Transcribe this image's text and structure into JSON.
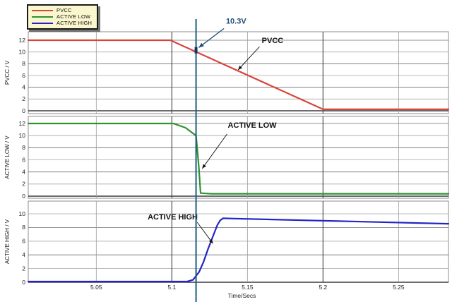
{
  "chart_data": {
    "type": "line",
    "title": "",
    "xlabel": "Time/Secs",
    "x_range": [
      5.005,
      5.283
    ],
    "x_ticks": [
      5.05,
      5.1,
      5.15,
      5.2,
      5.25
    ],
    "x_tick_labels": [
      "5.05",
      "5.1",
      "5.15",
      "5.2",
      "5.25"
    ],
    "x_major_dark_ticks": [
      5.1,
      5.2
    ],
    "grid": true,
    "legend": [
      {
        "label": "PVCC",
        "color": "#d8453c"
      },
      {
        "label": "ACTIVE LOW",
        "color": "#2f9132"
      },
      {
        "label": "ACTIVE HIGH",
        "color": "#2424c8"
      }
    ],
    "cursor": {
      "time": 5.116,
      "label": "10.3V",
      "value_at_pvcc": 10.3,
      "line_color": "#1a5e7e",
      "label_color": "#1f4e79",
      "label_at": [
        5.1358,
        14.85
      ],
      "arrow_from": [
        5.1345,
        14.0
      ],
      "arrow_to": [
        5.1178,
        10.75
      ]
    },
    "subplots": [
      {
        "ylabel": "PVCC / V",
        "yticks": [
          0,
          2,
          4,
          6,
          8,
          10,
          12
        ],
        "ylim": [
          -0.5,
          13.4
        ],
        "series": {
          "name": "PVCC",
          "color": "#d8453c",
          "points": [
            [
              5.005,
              12
            ],
            [
              5.099,
              12
            ],
            [
              5.2,
              0.25
            ],
            [
              5.283,
              0.25
            ]
          ]
        },
        "annotation": {
          "text": "PVCC",
          "color": "#111111",
          "text_at": [
            5.1595,
            11.55
          ],
          "arrow_from": [
            5.158,
            10.9
          ],
          "arrow_to": [
            5.1438,
            6.95
          ]
        }
      },
      {
        "ylabel": "ACTIVE LOW / V",
        "yticks": [
          0,
          2,
          4,
          6,
          8,
          10,
          12
        ],
        "ylim": [
          -0.35,
          13.2
        ],
        "series": {
          "name": "ACTIVE LOW",
          "color": "#2f9132",
          "points": [
            [
              5.005,
              12
            ],
            [
              5.101,
              12
            ],
            [
              5.109,
              11.3
            ],
            [
              5.116,
              10.0
            ],
            [
              5.1178,
              5.0
            ],
            [
              5.119,
              0.5
            ],
            [
              5.126,
              0.4
            ],
            [
              5.283,
              0.4
            ]
          ]
        },
        "annotation": {
          "text": "ACTIVE LOW",
          "color": "#111111",
          "text_at": [
            5.137,
            11.3
          ],
          "arrow_from": [
            5.1365,
            10.25
          ],
          "arrow_to": [
            5.1201,
            4.55
          ]
        }
      },
      {
        "ylabel": "ACTIVE HIGH / V",
        "yticks": [
          0,
          2,
          4,
          6,
          8,
          10
        ],
        "ylim": [
          0,
          11.85
        ],
        "series": {
          "name": "ACTIVE HIGH",
          "color": "#2424c8",
          "points": [
            [
              5.005,
              0.1
            ],
            [
              5.11,
              0.1
            ],
            [
              5.114,
              0.35
            ],
            [
              5.118,
              1.5
            ],
            [
              5.121,
              3.0
            ],
            [
              5.124,
              4.9
            ],
            [
              5.127,
              6.6
            ],
            [
              5.13,
              8.3
            ],
            [
              5.132,
              9.05
            ],
            [
              5.134,
              9.35
            ],
            [
              5.141,
              9.3
            ],
            [
              5.283,
              8.55
            ]
          ]
        },
        "annotation": {
          "text": "ACTIVE HIGH",
          "color": "#111111",
          "text_at": [
            5.084,
            9.15
          ],
          "arrow_from": [
            5.1168,
            8.75
          ],
          "arrow_to": [
            5.1272,
            5.65
          ]
        }
      }
    ]
  }
}
